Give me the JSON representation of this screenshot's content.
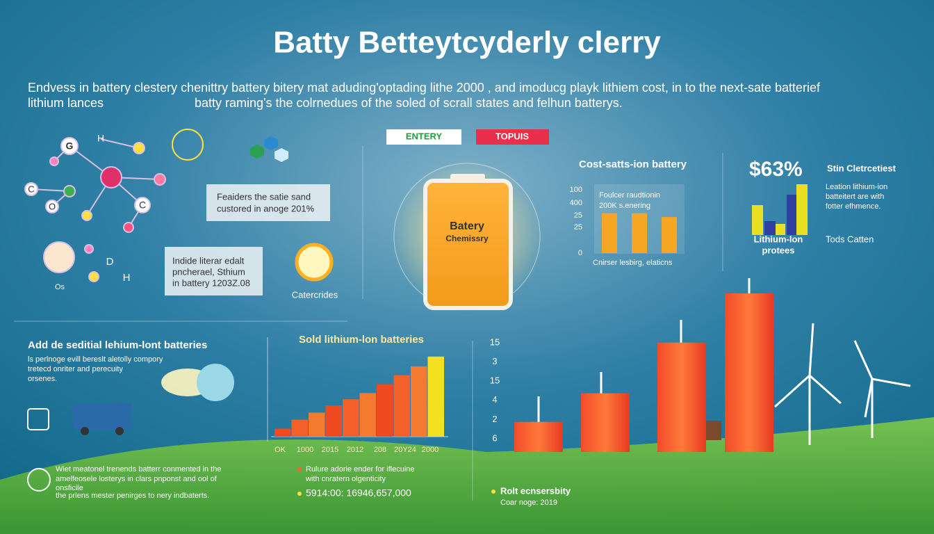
{
  "title": "Batty Betteytcyderly clerry",
  "intro": [
    "Endvess in battery clestery chenittry battery bitery mat aduding'optading lithe 2000 , and imoducg playk lithiem cost, in to the next-sate batterief",
    "lithium lances",
    "batty raming's the colrnedues of the soled of scrall states and felhun batterys."
  ],
  "molecule": [
    "G",
    "H",
    "C",
    "O",
    "C",
    "D",
    "H",
    "Os"
  ],
  "callouts": [
    [
      "Feaiders the satie sand",
      "custored in anoge 201%"
    ],
    [
      "Indide literar edalt",
      "pncherael, Sthium",
      "in battery 1203Z.08"
    ]
  ],
  "sun_label": "Catercrides",
  "tags": [
    "ENTERY",
    "TOPUIS"
  ],
  "battery_label": [
    "Batery",
    "Chemissry"
  ],
  "cost_chart": {
    "title": "Cost-satts-ion battery",
    "y_labels": [
      "100",
      "400",
      "25",
      "25",
      "0"
    ],
    "note": [
      "Foulcer raudtionin",
      "200K s.enering"
    ],
    "x_label": "Cnirser lesbirg, elaticns",
    "ylim": [
      0,
      100
    ],
    "values": [
      63,
      63,
      57
    ]
  },
  "stat": {
    "value": "$63%",
    "heading": "Stin Cletrcetiest",
    "lines": [
      "Leation lithium-ion",
      "batteitert are with",
      "fotter efhmence."
    ],
    "caption": [
      "Lithium-lon",
      "protees"
    ],
    "side": "Tods Catten"
  },
  "section": {
    "title": "Add de seditial lehium-lont batteries",
    "lines": [
      "ls perlnoge evill bereslt aletolly compory",
      "tretecd onriter and perecuity",
      "orsenes."
    ]
  },
  "sold_chart": {
    "title": "Sold lithium-lon batteries",
    "x_labels": [
      "OK",
      "1000",
      "2015",
      "2012",
      "208",
      "20Y24",
      "2000"
    ],
    "ylim": [
      0,
      100
    ],
    "values": [
      9,
      19,
      27,
      35,
      42,
      49,
      59,
      69,
      79,
      90
    ]
  },
  "growth_chart": {
    "y_labels": [
      "15",
      "3",
      "15",
      "4",
      "2",
      "6"
    ],
    "ylim": [
      0,
      100
    ],
    "values": [
      19,
      37,
      69,
      100
    ]
  },
  "footer": {
    "left": [
      "Wiet meatonel trenends batterr conmented in the",
      "amelfeosele losterys in clars pnponst and ool of",
      "onsficile",
      "the prlens mester penirges to nery indbaterts."
    ],
    "middle": [
      "Rulure adorie ender for iflecuine",
      "with cnratern olgenticity",
      "5914:00: 16946,657,000"
    ],
    "right": [
      "Rolt ecnsersbity",
      "Coar noge: 2019"
    ]
  }
}
